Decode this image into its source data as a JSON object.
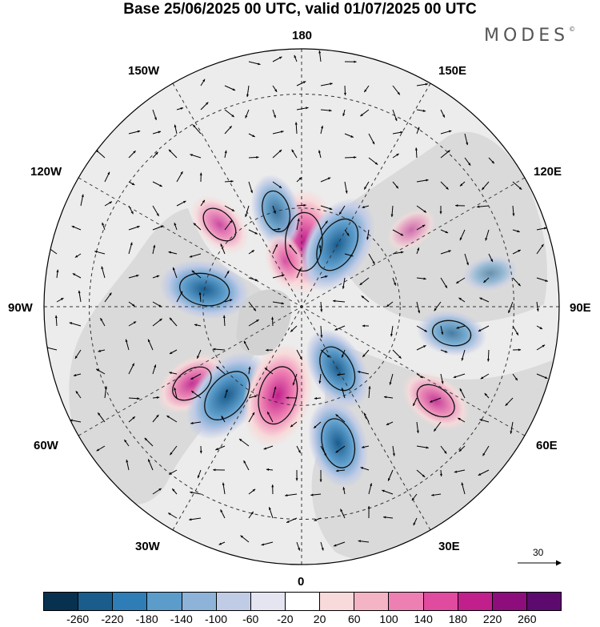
{
  "title": "Base 25/06/2025 00 UTC, valid 01/07/2025 00 UTC",
  "logo": {
    "text": "MODES",
    "mark": "©"
  },
  "map": {
    "projection": "north-polar-stereographic",
    "longitude_labels": {
      "top": "180",
      "bottom": "0",
      "left": "90W",
      "right": "90E",
      "upper_left": "150W",
      "upper_right": "150E",
      "mid_upper_left": "120W",
      "mid_upper_right": "120E",
      "mid_lower_left": "60W",
      "mid_lower_right": "60E",
      "lower_left": "30W",
      "lower_right": "30E"
    },
    "grid": true,
    "wind_vectors": true,
    "colors": {
      "ocean_bg": "#ececec",
      "grid": "#333333",
      "land": "#cfcfcf"
    },
    "anomalies": [
      {
        "lon": 178,
        "lat": 70,
        "value": 240
      },
      {
        "lon": 150,
        "lat": 68,
        "value": -220
      },
      {
        "lon": -165,
        "lat": 60,
        "value": -120
      },
      {
        "lon": -135,
        "lat": 55,
        "value": 100
      },
      {
        "lon": -100,
        "lat": 60,
        "value": -180
      },
      {
        "lon": -55,
        "lat": 50,
        "value": 130
      },
      {
        "lon": -40,
        "lat": 55,
        "value": -220
      },
      {
        "lon": -15,
        "lat": 62,
        "value": 240
      },
      {
        "lon": 15,
        "lat": 48,
        "value": -180
      },
      {
        "lon": 30,
        "lat": 68,
        "value": -160
      },
      {
        "lon": 55,
        "lat": 42,
        "value": 120
      },
      {
        "lon": 80,
        "lat": 45,
        "value": -100
      },
      {
        "lon": 125,
        "lat": 50,
        "value": 40
      },
      {
        "lon": 100,
        "lat": 35,
        "value": -40
      },
      {
        "lon": -160,
        "lat": 75,
        "value": 60
      }
    ]
  },
  "vector_reference": {
    "value": "30"
  },
  "colorbar": {
    "colors": [
      "#08304f",
      "#1a5c8c",
      "#2f7db7",
      "#5b9ccb",
      "#8db3d9",
      "#c0cbe6",
      "#e5e5f2",
      "#ffffff",
      "#f8dada",
      "#f4b4c6",
      "#ee7fb2",
      "#e04a9f",
      "#c01f8c",
      "#8e0d7d",
      "#5c0a6e"
    ],
    "tick_labels": [
      "-260",
      "-220",
      "-180",
      "-140",
      "-100",
      "-60",
      "-20",
      "20",
      "60",
      "100",
      "140",
      "180",
      "220",
      "260"
    ]
  }
}
